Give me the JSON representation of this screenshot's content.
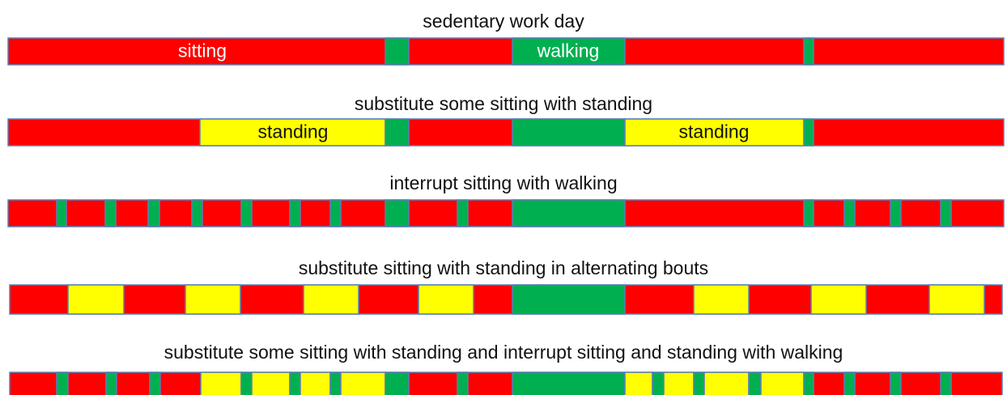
{
  "rows": [
    {
      "title": "sedentary work day",
      "labels": [
        "sitting",
        "walking"
      ]
    },
    {
      "title": "substitute some sitting with standing",
      "labels": [
        "standing",
        "standing"
      ]
    },
    {
      "title": "interrupt sitting with walking",
      "labels": []
    },
    {
      "title": "substitute sitting with standing in alternating bouts",
      "labels": []
    },
    {
      "title": "substitute some sitting with standing and interrupt sitting and standing with walking",
      "labels": []
    }
  ]
}
